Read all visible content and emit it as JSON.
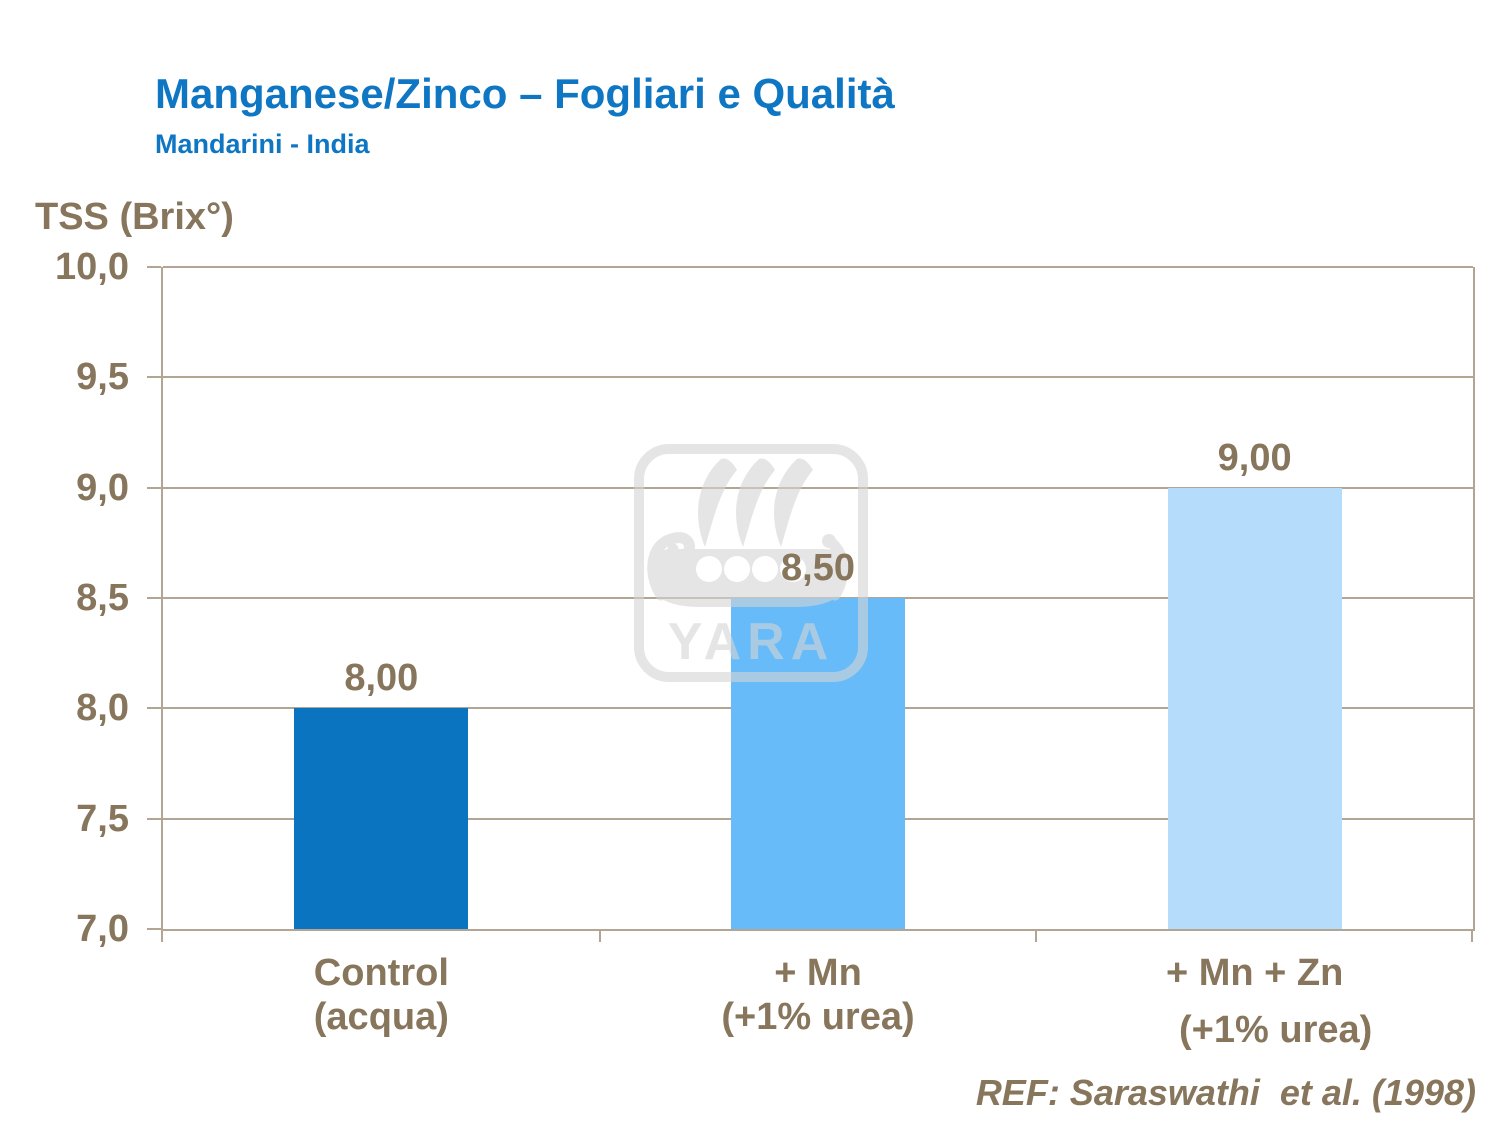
{
  "header": {
    "title": "Manganese/Zinco – Fogliari e Qualità",
    "subtitle": "Mandarini - India"
  },
  "reference": "REF: Saraswathi  et al. (1998)",
  "chart_data": {
    "type": "bar",
    "title": "Manganese/Zinco – Fogliari e Qualità",
    "subtitle": "Mandarini - India",
    "ylabel": "TSS (Brix°)",
    "xlabel": "",
    "ylim": [
      7.0,
      10.0
    ],
    "ytick_step": 0.5,
    "ytick_labels": [
      "10,0",
      "9,5",
      "9,0",
      "8,5",
      "8,0",
      "7,5",
      "7,0"
    ],
    "grid": true,
    "legend": false,
    "categories": [
      {
        "line1": "Control",
        "line2": "(acqua)"
      },
      {
        "line1": "+ Mn",
        "line2": "(+1% urea)"
      },
      {
        "line1": "+ Mn + Zn",
        "line2": "(+1% urea)"
      }
    ],
    "values": [
      8.0,
      8.5,
      9.0
    ],
    "value_labels": [
      "8,00",
      "8,50",
      "9,00"
    ],
    "bar_colors": [
      "#0B74C0",
      "#66BBF8",
      "#B5DDFB"
    ]
  },
  "watermark": {
    "name": "yara-logo",
    "text": "YARA",
    "color": "#D4D4D4"
  },
  "colors": {
    "title_blue": "#0E76C3",
    "text_brown": "#87755C",
    "grid_line": "#B3A593",
    "background": "#FFFFFF"
  }
}
